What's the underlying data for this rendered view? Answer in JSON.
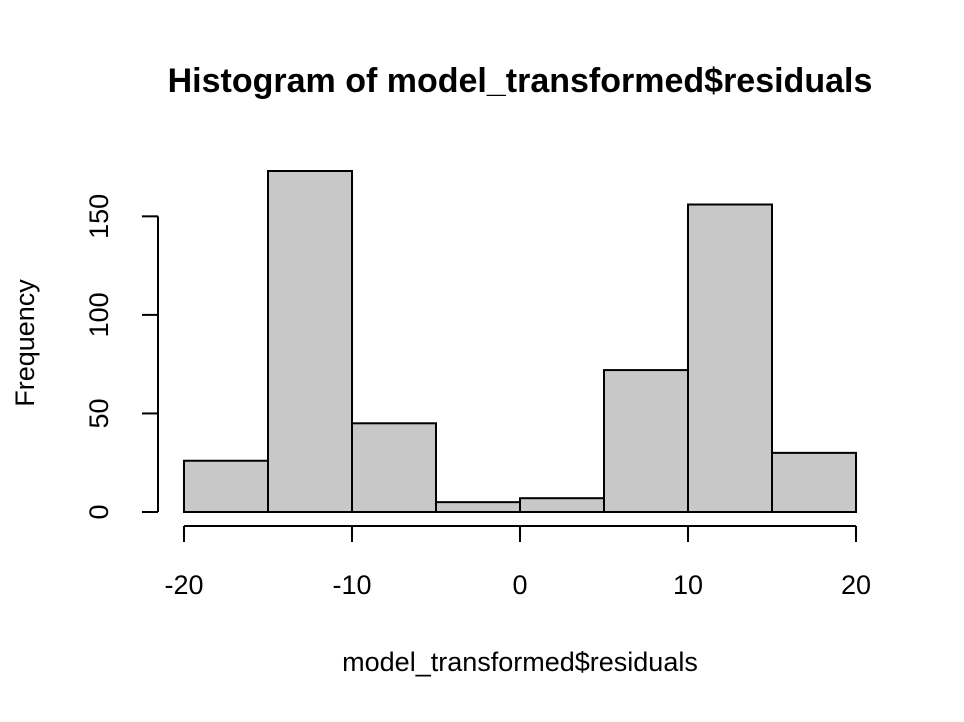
{
  "chart_data": {
    "type": "bar",
    "title": "Histogram of model_transformed$residuals",
    "xlabel": "model_transformed$residuals",
    "ylabel": "Frequency",
    "bins": [
      {
        "start": -20,
        "end": -15,
        "count": 26
      },
      {
        "start": -15,
        "end": -10,
        "count": 173
      },
      {
        "start": -10,
        "end": -5,
        "count": 45
      },
      {
        "start": -5,
        "end": 0,
        "count": 5
      },
      {
        "start": 0,
        "end": 5,
        "count": 7
      },
      {
        "start": 5,
        "end": 10,
        "count": 72
      },
      {
        "start": 10,
        "end": 15,
        "count": 156
      },
      {
        "start": 15,
        "end": 20,
        "count": 30
      }
    ],
    "xlim": [
      -20,
      20
    ],
    "ylim": [
      0,
      173
    ],
    "x_ticks": [
      -20,
      -10,
      0,
      10,
      20
    ],
    "y_ticks": [
      0,
      50,
      100,
      150
    ],
    "bar_color": "#c8c8c8",
    "grid": false,
    "legend": "none"
  }
}
